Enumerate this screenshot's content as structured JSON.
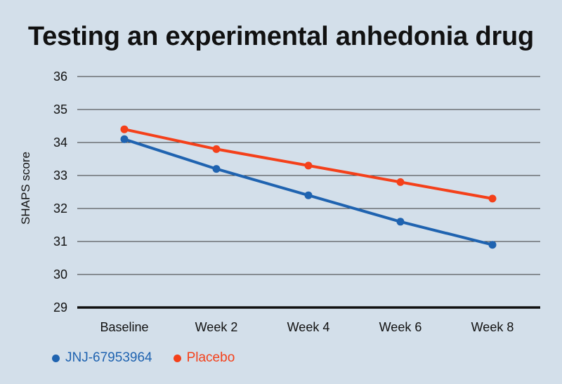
{
  "chart_data": {
    "type": "line",
    "title": "Testing an experimental anhedonia drug",
    "xlabel": "",
    "ylabel": "SHAPS score",
    "categories": [
      "Baseline",
      "Week 2",
      "Week 4",
      "Week 6",
      "Week 8"
    ],
    "ylim": [
      29,
      36
    ],
    "yticks": [
      29,
      30,
      31,
      32,
      33,
      34,
      35,
      36
    ],
    "grid": true,
    "legend_position": "bottom-left",
    "series": [
      {
        "name": "JNJ-67953964",
        "color": "#1f63b0",
        "values": [
          34.1,
          33.2,
          32.4,
          31.6,
          30.9
        ]
      },
      {
        "name": "Placebo",
        "color": "#f4401a",
        "values": [
          34.4,
          33.8,
          33.3,
          32.8,
          32.3
        ]
      }
    ]
  }
}
